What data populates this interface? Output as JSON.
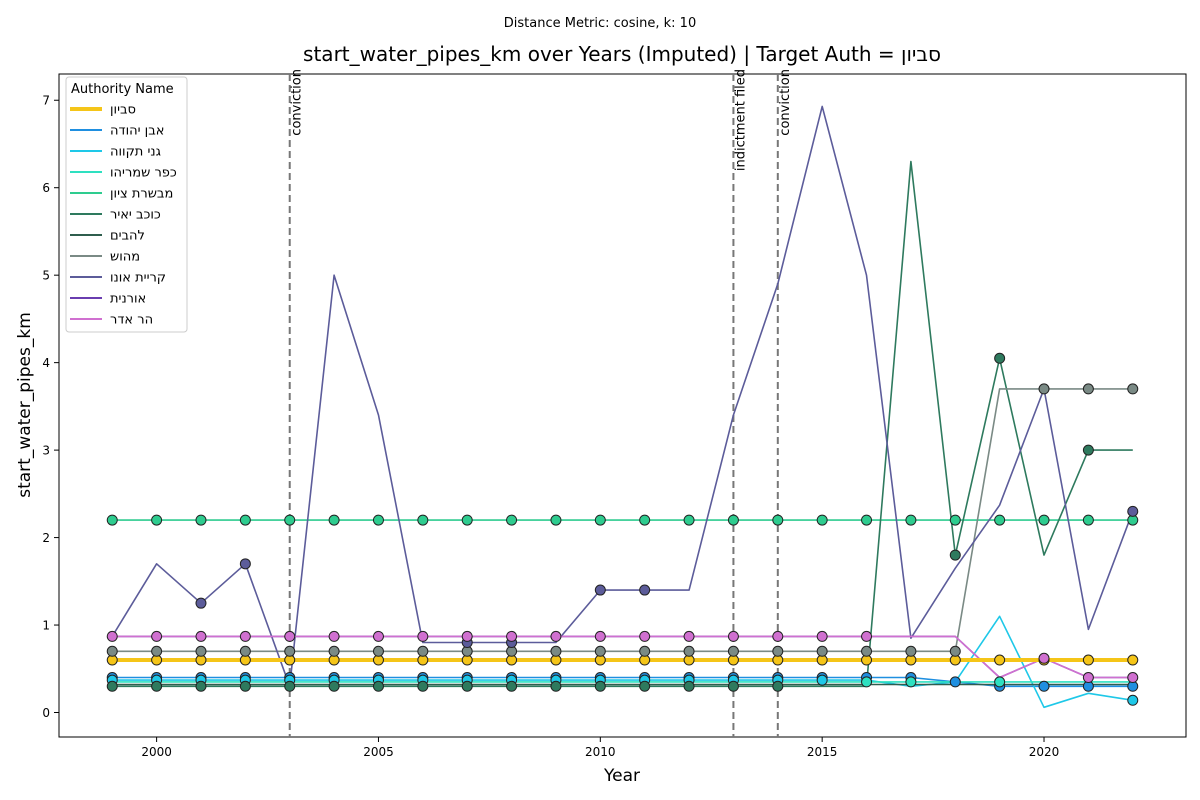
{
  "chart_data": {
    "type": "line",
    "subtitle": "Distance Metric: cosine, k: 10",
    "title": "start_water_pipes_km over Years (Imputed) | Target Auth = סביון",
    "xlabel": "Year",
    "ylabel": "start_water_pipes_km",
    "xlim": [
      1997.8,
      2023.2
    ],
    "ylim": [
      -0.28,
      7.3
    ],
    "x_ticks": [
      2000,
      2005,
      2010,
      2015,
      2020
    ],
    "y_ticks": [
      0,
      1,
      2,
      3,
      4,
      5,
      6,
      7
    ],
    "grid": false,
    "legend": {
      "title": "Authority Name",
      "placement": "top-left"
    },
    "x": [
      1999,
      2000,
      2001,
      2002,
      2003,
      2004,
      2005,
      2006,
      2007,
      2008,
      2009,
      2010,
      2011,
      2012,
      2013,
      2014,
      2015,
      2016,
      2017,
      2018,
      2019,
      2020,
      2021,
      2022
    ],
    "events": [
      {
        "x": 2003,
        "label": "conviction"
      },
      {
        "x": 2013,
        "label": "indictment filed"
      },
      {
        "x": 2014,
        "label": "conviction"
      }
    ],
    "series": [
      {
        "name": "סביון",
        "color": "#f5c518",
        "target": true,
        "values": [
          0.6,
          0.6,
          0.6,
          0.6,
          0.6,
          0.6,
          0.6,
          0.6,
          0.6,
          0.6,
          0.6,
          0.6,
          0.6,
          0.6,
          0.6,
          0.6,
          0.6,
          0.6,
          0.6,
          0.6,
          0.6,
          0.6,
          0.6,
          0.6
        ],
        "markers": [
          0,
          1,
          2,
          3,
          4,
          5,
          6,
          7,
          8,
          9,
          10,
          11,
          12,
          13,
          14,
          15,
          16,
          17,
          18,
          19,
          20,
          21,
          22,
          23
        ]
      },
      {
        "name": "אבן יהודה",
        "color": "#1f8fe0",
        "values": [
          0.4,
          0.4,
          0.4,
          0.4,
          0.4,
          0.4,
          0.4,
          0.4,
          0.4,
          0.4,
          0.4,
          0.4,
          0.4,
          0.4,
          0.4,
          0.4,
          0.4,
          0.4,
          0.4,
          0.35,
          0.3,
          0.3,
          0.3,
          0.3
        ],
        "markers": [
          0,
          1,
          2,
          3,
          4,
          5,
          6,
          7,
          8,
          9,
          10,
          11,
          12,
          13,
          14,
          15,
          16,
          17,
          18,
          19,
          20,
          21,
          22,
          23
        ]
      },
      {
        "name": "גני תקווה",
        "color": "#1ec8e8",
        "values": [
          0.37,
          0.37,
          0.37,
          0.37,
          0.37,
          0.37,
          0.37,
          0.37,
          0.37,
          0.37,
          0.37,
          0.37,
          0.37,
          0.37,
          0.37,
          0.37,
          0.37,
          0.37,
          0.3,
          0.35,
          1.1,
          0.06,
          0.22,
          0.14
        ],
        "markers": [
          0,
          1,
          2,
          3,
          4,
          5,
          6,
          7,
          8,
          9,
          10,
          11,
          12,
          13,
          14,
          15,
          16,
          23
        ]
      },
      {
        "name": "כפר שמריהו",
        "color": "#2ee0c0",
        "values": [
          0.35,
          0.35,
          0.35,
          0.35,
          0.35,
          0.35,
          0.35,
          0.35,
          0.35,
          0.35,
          0.35,
          0.35,
          0.35,
          0.35,
          0.35,
          0.35,
          0.35,
          0.35,
          0.35,
          0.35,
          0.35,
          0.35,
          0.35,
          0.35
        ],
        "markers": [
          17,
          18,
          20
        ]
      },
      {
        "name": "מבשרת ציון",
        "color": "#2ecc8f",
        "values": [
          2.2,
          2.2,
          2.2,
          2.2,
          2.2,
          2.2,
          2.2,
          2.2,
          2.2,
          2.2,
          2.2,
          2.2,
          2.2,
          2.2,
          2.2,
          2.2,
          2.2,
          2.2,
          2.2,
          2.2,
          2.2,
          2.2,
          2.2,
          2.2
        ],
        "markers": [
          0,
          1,
          2,
          3,
          4,
          5,
          6,
          7,
          8,
          9,
          10,
          11,
          12,
          13,
          14,
          15,
          16,
          17,
          18,
          19,
          20,
          21,
          22,
          23
        ]
      },
      {
        "name": "כוכב יאיר",
        "color": "#2e7a5e",
        "values": [
          0.3,
          0.3,
          0.3,
          0.3,
          0.3,
          0.3,
          0.3,
          0.3,
          0.3,
          0.3,
          0.3,
          0.3,
          0.3,
          0.3,
          0.3,
          0.3,
          0.3,
          0.3,
          6.3,
          1.8,
          4.05,
          1.8,
          3.0,
          3.0
        ],
        "markers": [
          0,
          1,
          2,
          3,
          4,
          5,
          6,
          7,
          8,
          9,
          10,
          11,
          12,
          13,
          14,
          15,
          19,
          20,
          22
        ]
      },
      {
        "name": "להבים",
        "color": "#2f5e4e",
        "values": [
          0.32,
          0.32,
          0.32,
          0.32,
          0.32,
          0.32,
          0.32,
          0.32,
          0.32,
          0.32,
          0.32,
          0.32,
          0.32,
          0.32,
          0.32,
          0.32,
          0.32,
          0.32,
          0.32,
          0.32,
          0.32,
          0.32,
          0.32,
          0.32
        ],
        "markers": []
      },
      {
        "name": "מהוש",
        "color": "#7a8a85",
        "values": [
          0.7,
          0.7,
          0.7,
          0.7,
          0.7,
          0.7,
          0.7,
          0.7,
          0.7,
          0.7,
          0.7,
          0.7,
          0.7,
          0.7,
          0.7,
          0.7,
          0.7,
          0.7,
          0.7,
          0.7,
          3.7,
          3.7,
          3.7,
          3.7
        ],
        "markers": [
          0,
          1,
          2,
          3,
          4,
          5,
          6,
          7,
          8,
          9,
          10,
          11,
          12,
          13,
          14,
          15,
          16,
          17,
          18,
          19,
          21,
          22,
          23
        ]
      },
      {
        "name": "קריית אונו",
        "color": "#5c5c9a",
        "values": [
          0.87,
          1.7,
          1.25,
          1.7,
          0.3,
          5.0,
          3.4,
          0.8,
          0.8,
          0.8,
          0.8,
          1.4,
          1.4,
          1.4,
          3.4,
          4.9,
          6.93,
          5.0,
          0.85,
          1.65,
          2.37,
          3.7,
          0.95,
          2.3
        ],
        "markers": [
          2,
          3,
          8,
          9,
          11,
          12,
          23
        ]
      },
      {
        "name": "אורנית",
        "color": "#6a3db0",
        "values": [
          0.87,
          0.87,
          0.87,
          0.87,
          0.87,
          0.87,
          0.87,
          0.87,
          0.87,
          0.87,
          0.87,
          0.87,
          0.87,
          0.87,
          0.87,
          0.87,
          0.87,
          0.87,
          0.87,
          0.87,
          0.4,
          0.62,
          0.4,
          0.4
        ],
        "markers": []
      },
      {
        "name": "הר אדר",
        "color": "#d070d0",
        "values": [
          0.87,
          0.87,
          0.87,
          0.87,
          0.87,
          0.87,
          0.87,
          0.87,
          0.87,
          0.87,
          0.87,
          0.87,
          0.87,
          0.87,
          0.87,
          0.87,
          0.87,
          0.87,
          0.87,
          0.87,
          0.4,
          0.62,
          0.4,
          0.4
        ],
        "markers": [
          0,
          1,
          2,
          3,
          4,
          5,
          6,
          7,
          8,
          9,
          10,
          11,
          12,
          13,
          14,
          15,
          16,
          17,
          21,
          22,
          23
        ]
      }
    ]
  }
}
